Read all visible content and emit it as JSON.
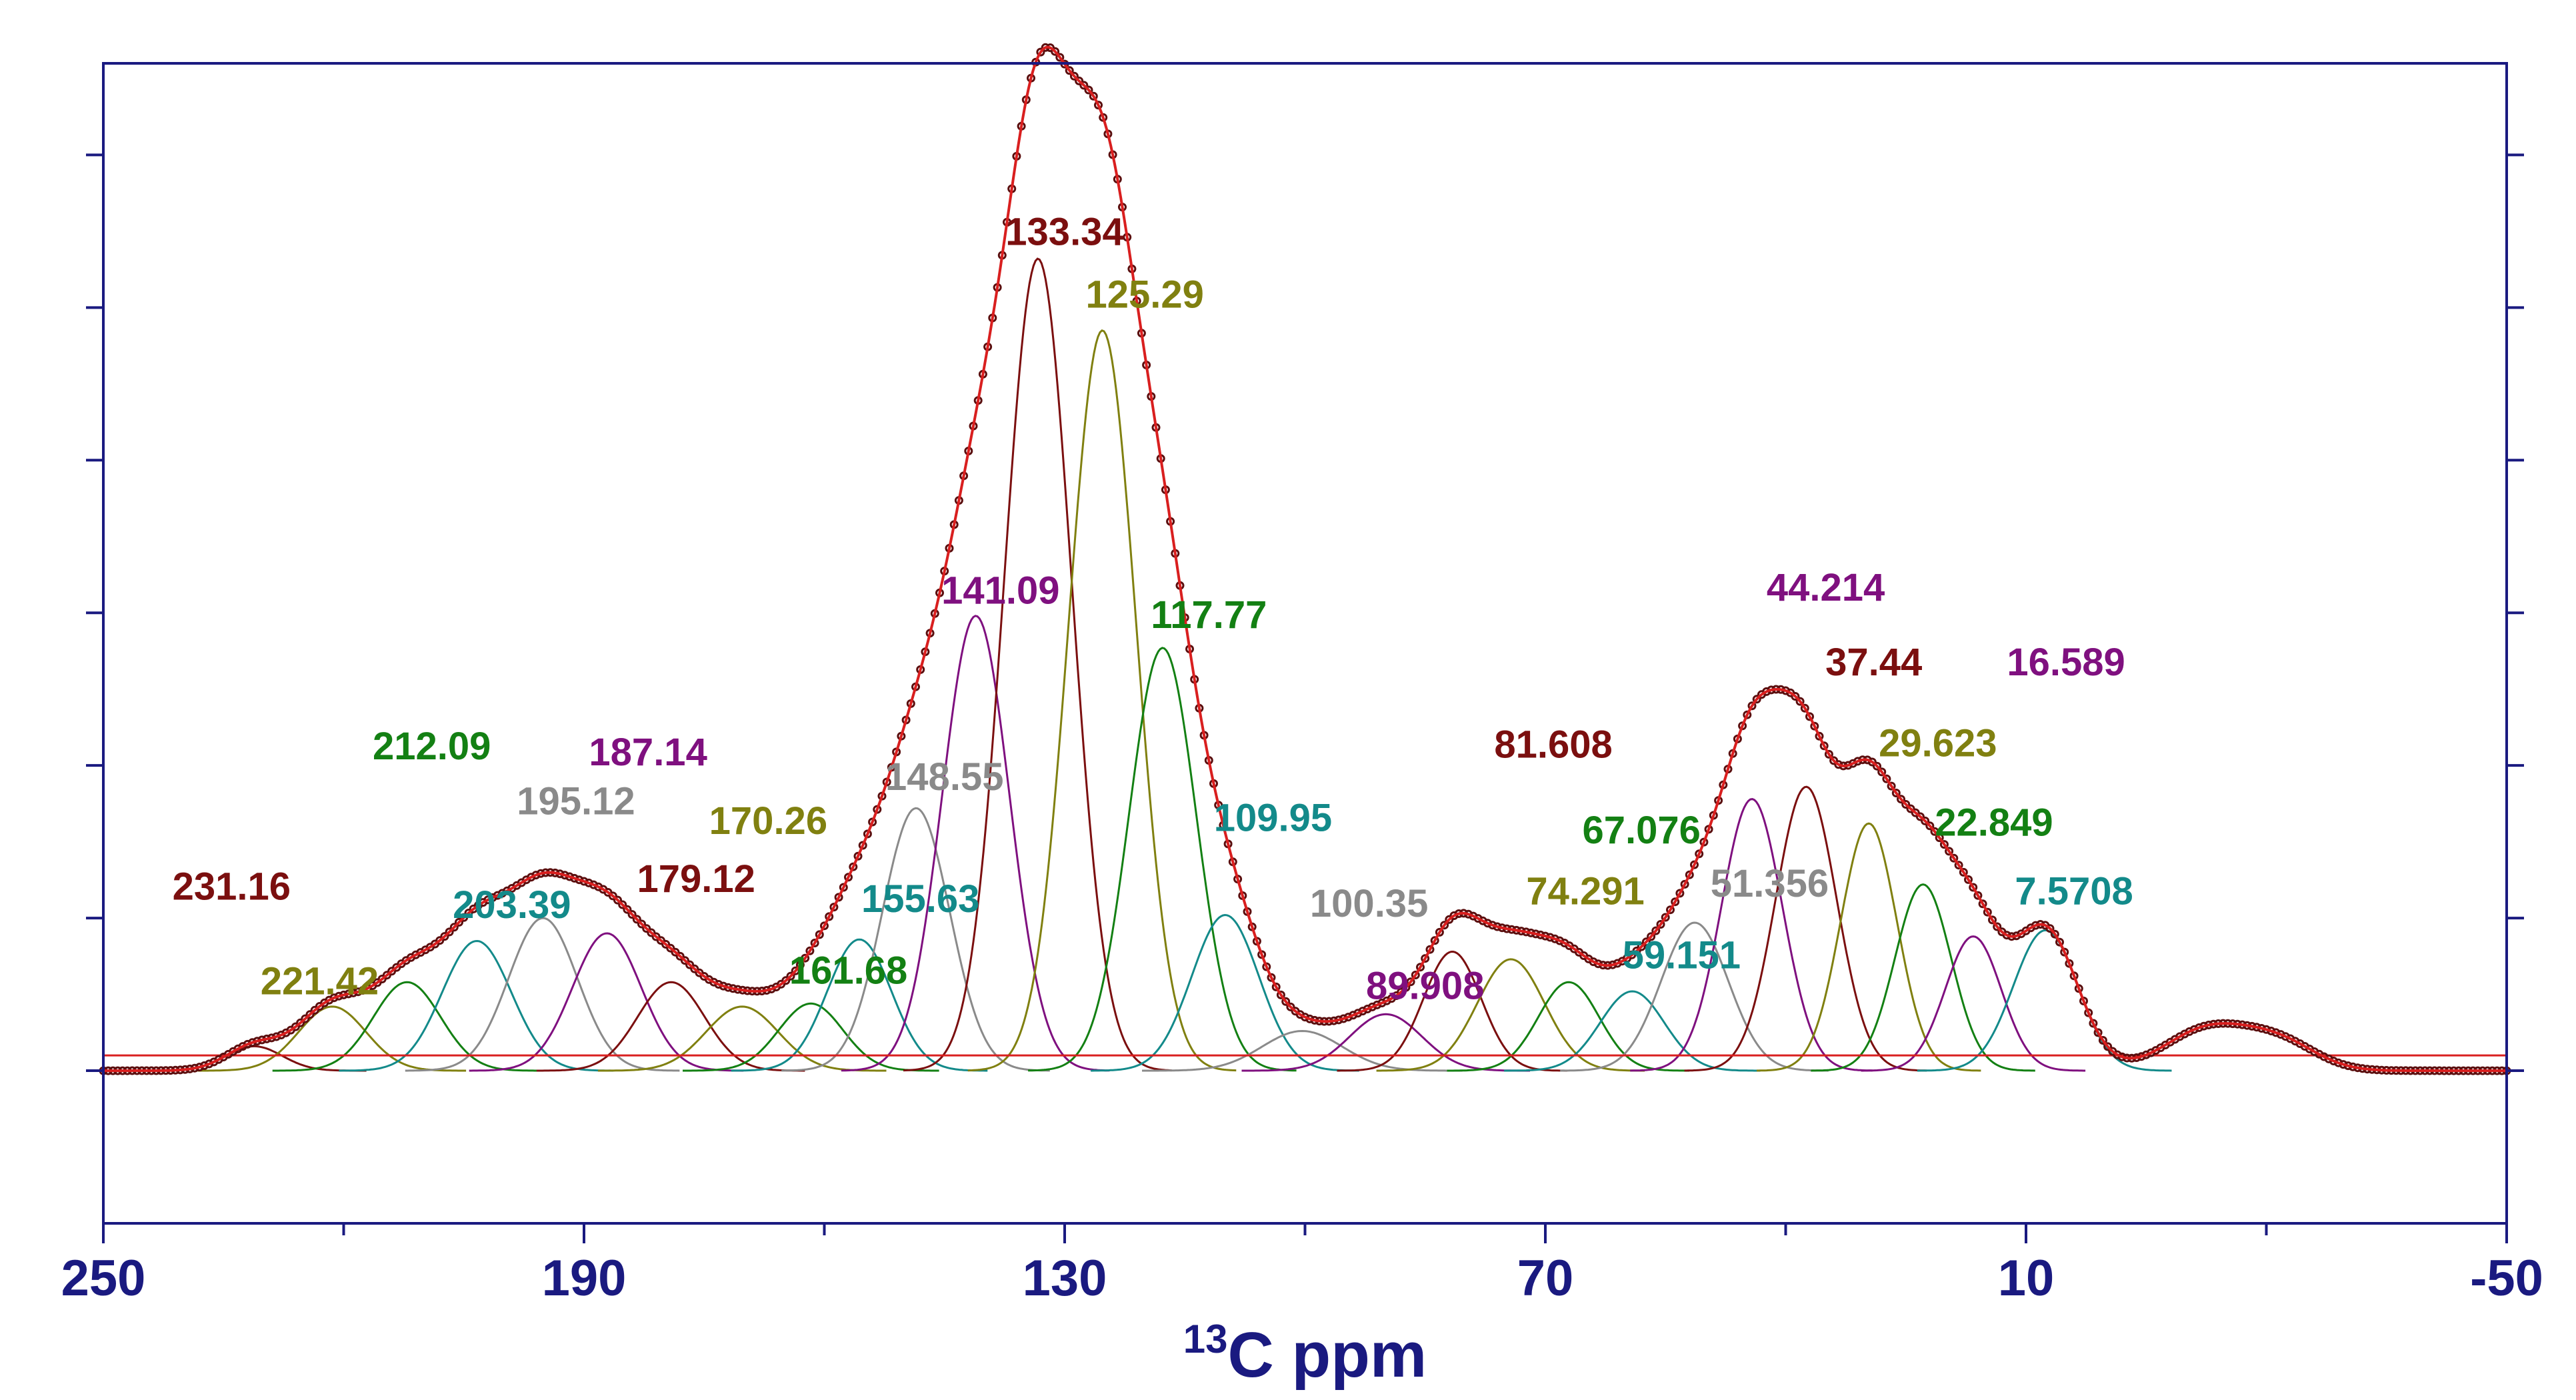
{
  "chart_data": {
    "type": "line",
    "title": "",
    "xlabel_prefix": "13",
    "xlabel_main": "C ppm",
    "ylabel": "",
    "xlim": [
      250,
      -50
    ],
    "ylim": [
      -1.0,
      6.6
    ],
    "xticks": [
      250,
      190,
      130,
      70,
      10,
      -50
    ],
    "xtick_labels": [
      "250",
      "190",
      "130",
      "70",
      "10",
      "-50"
    ],
    "minor_xticks": [
      220,
      160,
      100,
      40,
      -20
    ],
    "yticks": [
      0,
      1,
      2,
      3,
      4,
      5,
      6
    ],
    "grid": false,
    "baseline_value": 0.1,
    "colors": {
      "axis": "#1a1a80",
      "envelope": "#d91f1f",
      "markers": "#5a0e0e"
    },
    "peaks": [
      {
        "center": 231.16,
        "label": "231.16",
        "height": 0.16,
        "width": 3.5,
        "color": "#7b0f0f"
      },
      {
        "center": 221.42,
        "label": "221.42",
        "height": 0.42,
        "width": 4.2,
        "color": "#808010"
      },
      {
        "center": 212.09,
        "label": "212.09",
        "height": 0.58,
        "width": 4.2,
        "color": "#138013"
      },
      {
        "center": 203.39,
        "label": "203.39",
        "height": 0.85,
        "width": 4.3,
        "color": "#138a8a"
      },
      {
        "center": 195.12,
        "label": "195.12",
        "height": 1.0,
        "width": 4.3,
        "color": "#8a8a8a"
      },
      {
        "center": 187.14,
        "label": "187.14",
        "height": 0.9,
        "width": 4.3,
        "color": "#7f107f"
      },
      {
        "center": 179.12,
        "label": "179.12",
        "height": 0.58,
        "width": 4.2,
        "color": "#7b0f0f"
      },
      {
        "center": 170.26,
        "label": "170.26",
        "height": 0.42,
        "width": 4.5,
        "color": "#808010"
      },
      {
        "center": 161.68,
        "label": "161.68",
        "height": 0.44,
        "width": 4.0,
        "color": "#138013"
      },
      {
        "center": 155.63,
        "label": "155.63",
        "height": 0.86,
        "width": 4.0,
        "color": "#138a8a"
      },
      {
        "center": 148.55,
        "label": "148.55",
        "height": 1.72,
        "width": 4.2,
        "color": "#8a8a8a"
      },
      {
        "center": 141.09,
        "label": "141.09",
        "height": 2.98,
        "width": 4.2,
        "color": "#7f107f"
      },
      {
        "center": 133.34,
        "label": "133.34",
        "height": 5.32,
        "width": 4.2,
        "color": "#7b0f0f"
      },
      {
        "center": 125.29,
        "label": "125.29",
        "height": 4.85,
        "width": 4.2,
        "color": "#808010"
      },
      {
        "center": 117.77,
        "label": "117.77",
        "height": 2.77,
        "width": 4.2,
        "color": "#138013"
      },
      {
        "center": 109.95,
        "label": "109.95",
        "height": 1.02,
        "width": 4.2,
        "color": "#138a8a"
      },
      {
        "center": 100.35,
        "label": "100.35",
        "height": 0.26,
        "width": 5.0,
        "color": "#8a8a8a"
      },
      {
        "center": 89.908,
        "label": "89.908",
        "height": 0.37,
        "width": 4.5,
        "color": "#7f107f"
      },
      {
        "center": 81.608,
        "label": "81.608",
        "height": 0.78,
        "width": 3.6,
        "color": "#7b0f0f"
      },
      {
        "center": 74.291,
        "label": "74.291",
        "height": 0.73,
        "width": 4.2,
        "color": "#808010"
      },
      {
        "center": 67.076,
        "label": "67.076",
        "height": 0.58,
        "width": 3.8,
        "color": "#138013"
      },
      {
        "center": 59.151,
        "label": "59.151",
        "height": 0.52,
        "width": 4.0,
        "color": "#138a8a"
      },
      {
        "center": 51.356,
        "label": "51.356",
        "height": 0.97,
        "width": 4.2,
        "color": "#8a8a8a"
      },
      {
        "center": 44.214,
        "label": "44.214",
        "height": 1.78,
        "width": 3.8,
        "color": "#7f107f"
      },
      {
        "center": 37.44,
        "label": "37.44",
        "height": 1.86,
        "width": 3.8,
        "color": "#7b0f0f"
      },
      {
        "center": 29.623,
        "label": "29.623",
        "height": 1.62,
        "width": 3.5,
        "color": "#808010"
      },
      {
        "center": 22.849,
        "label": "22.849",
        "height": 1.22,
        "width": 3.5,
        "color": "#138013"
      },
      {
        "center": 16.589,
        "label": "16.589",
        "height": 0.88,
        "width": 3.5,
        "color": "#7f107f"
      },
      {
        "center": 7.5708,
        "label": "7.5708",
        "height": 0.92,
        "width": 4.0,
        "color": "#138a8a"
      }
    ],
    "label_positions_ppm": [
      {
        "x": 234,
        "y": 1.12
      },
      {
        "x": 223,
        "y": 0.5
      },
      {
        "x": 209,
        "y": 2.04
      },
      {
        "x": 199,
        "y": 1.0
      },
      {
        "x": 191,
        "y": 1.68
      },
      {
        "x": 182,
        "y": 2.0
      },
      {
        "x": 176,
        "y": 1.17
      },
      {
        "x": 167,
        "y": 1.55
      },
      {
        "x": 157,
        "y": 0.57
      },
      {
        "x": 148,
        "y": 1.04
      },
      {
        "x": 145,
        "y": 1.84
      },
      {
        "x": 138,
        "y": 3.06
      },
      {
        "x": 130,
        "y": 5.41
      },
      {
        "x": 120,
        "y": 5.0
      },
      {
        "x": 112,
        "y": 2.9
      },
      {
        "x": 104,
        "y": 1.57
      },
      {
        "x": 92,
        "y": 1.01
      },
      {
        "x": 85,
        "y": 0.47
      },
      {
        "x": 69,
        "y": 2.05
      },
      {
        "x": 65,
        "y": 1.09
      },
      {
        "x": 58,
        "y": 1.49
      },
      {
        "x": 53,
        "y": 0.67
      },
      {
        "x": 42,
        "y": 1.14
      },
      {
        "x": 35,
        "y": 3.08
      },
      {
        "x": 29,
        "y": 2.59
      },
      {
        "x": 21,
        "y": 2.06
      },
      {
        "x": 14,
        "y": 1.54
      },
      {
        "x": 5,
        "y": 2.59
      },
      {
        "x": 4,
        "y": 1.09
      }
    ],
    "extra_envelope_bumps": [
      {
        "center": -13,
        "height": 0.28,
        "width": 5.5
      },
      {
        "center": -22,
        "height": 0.16,
        "width": 4.5
      }
    ]
  }
}
